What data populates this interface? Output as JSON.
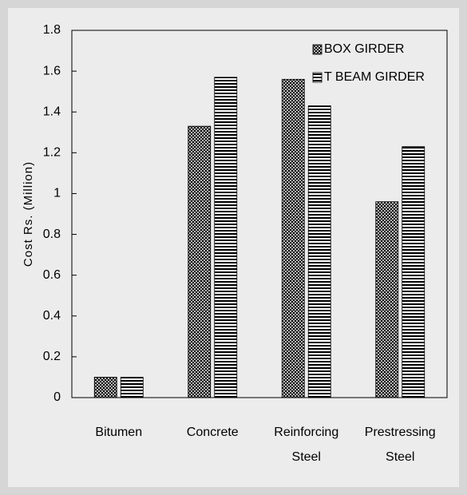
{
  "chart_data": {
    "type": "bar",
    "y_label": "Cost Rs. (Million)",
    "categories": [
      "Bitumen",
      "Concrete",
      "Reinforcing Steel",
      "Prestressing Steel"
    ],
    "series": [
      {
        "name": "BOX GIRDER",
        "color": "#000000",
        "pattern": "crosshatch",
        "values": [
          0.1,
          1.33,
          1.56,
          0.96
        ]
      },
      {
        "name": "T BEAM GIRDER",
        "color": "#000000",
        "pattern": "horizontal",
        "values": [
          0.1,
          1.57,
          1.43,
          1.23
        ]
      }
    ],
    "ylim": [
      0,
      1.8
    ],
    "yticks": [
      0,
      0.2,
      0.4,
      0.6,
      0.8,
      1,
      1.2,
      1.4,
      1.6,
      1.8
    ],
    "grid": false,
    "legend": "upper right"
  }
}
